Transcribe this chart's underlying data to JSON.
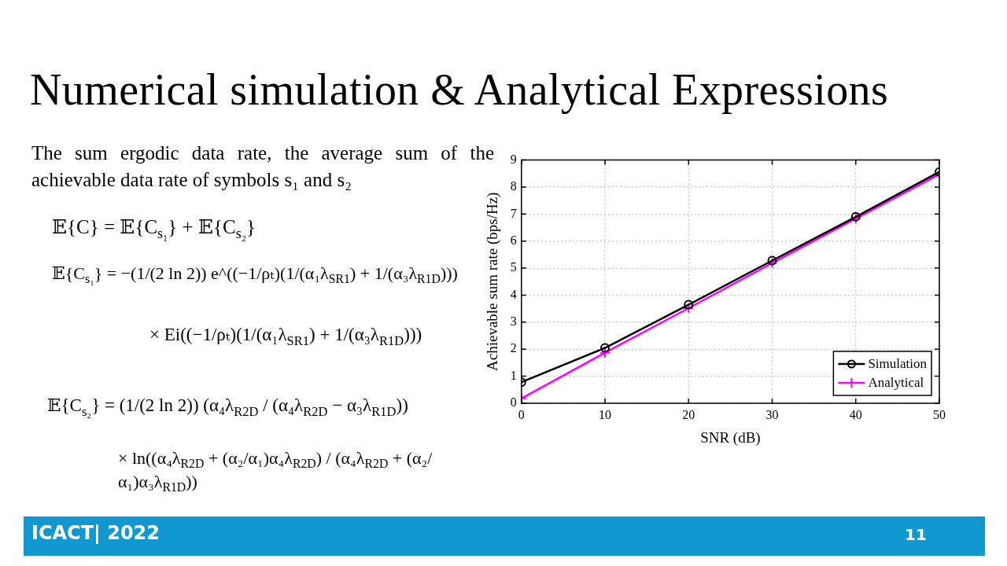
{
  "chart_data": {
    "type": "line",
    "title": "Numerical simulation & Analytical Expressions",
    "xlabel": "SNR (dB)",
    "ylabel": "Achievable sum rate (bps/Hz)",
    "x": [
      0,
      10,
      20,
      30,
      40,
      50
    ],
    "series": [
      {
        "name": "Simulation",
        "color": "#000000",
        "marker": "circle",
        "values": [
          0.78,
          2.05,
          3.65,
          5.28,
          6.9,
          8.56
        ]
      },
      {
        "name": "Analytical",
        "color": "#ff00ff",
        "marker": "cross",
        "values": [
          0.18,
          1.87,
          3.52,
          5.19,
          6.83,
          8.47
        ]
      }
    ],
    "xlim": [
      0,
      50
    ],
    "xticks": [
      0,
      10,
      20,
      30,
      40,
      50
    ],
    "ylim": [
      0,
      9
    ],
    "yticks": [
      0,
      1,
      2,
      3,
      4,
      5,
      6,
      7,
      8,
      9
    ],
    "grid": true,
    "legend": "bottom right",
    "line_style": "solid",
    "annotations": [
      "The sum ergodic data rate, the average sum of the achievable data rate of symbols s₁ and s₂",
      "𝔼{C} = 𝔼{C$_{s₁}$} + 𝔼{C$_{s₂}$}",
      "𝔼{C$_{s₁}$} = −(1/(2 ln 2)) e^((−1/ρₜ)(1/(α₁λ$_{SR1}$) + 1/(α₃λ$_{R1D}$)))",
      "× Ei((−1/ρₜ)(1/(α₁λ$_{SR1}$) + 1/(α₃λ$_{R1D}$)))",
      "𝔼{C$_{s₂}$} = (1/(2 ln 2)) (α₄λ$_{R2D}$ / (α₄λ$_{R2D}$ − α₃λ$_{R1D}$))",
      "× ln((α₄λ$_{R2D}$ + (α₂/α₁)α₄λ$_{R2D}$) / (α₄λ$_{R2D}$ + (α₂/α₁)α₃λ$_{R1D}$))",
      "ICACT| 2022",
      "11"
    ]
  }
}
